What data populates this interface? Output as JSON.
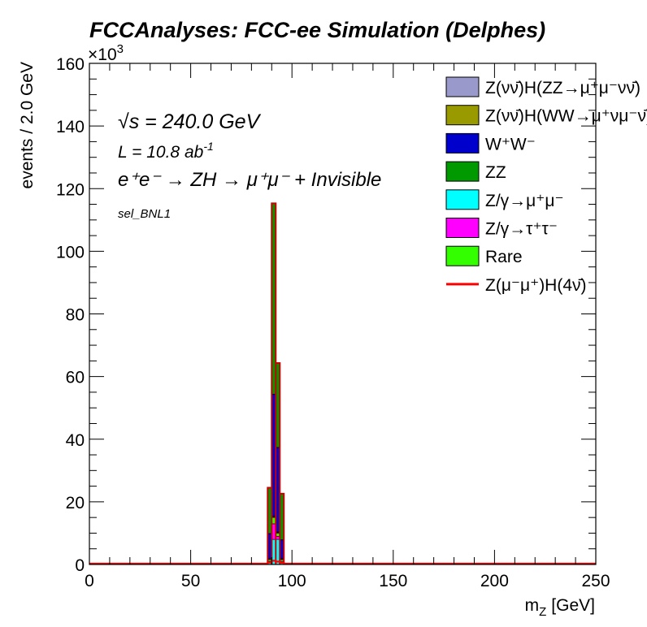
{
  "chart_data": {
    "type": "bar",
    "title": "FCCAnalyses: FCC-ee Simulation (Delphes)",
    "xlabel": "m",
    "xlabel_sub": "Z",
    "xlabel_unit": "[GeV]",
    "ylabel": "events / 2.0 GeV",
    "y_multiplier": "×10",
    "y_multiplier_exp": "3",
    "xlim": [
      0,
      250
    ],
    "ylim": [
      0,
      160
    ],
    "y_units": "thousands of events",
    "xticks": [
      0,
      50,
      100,
      150,
      200,
      250
    ],
    "yticks": [
      0,
      20,
      40,
      60,
      80,
      100,
      120,
      140,
      160
    ],
    "grid": false,
    "legend_position": "top-right",
    "annotations": {
      "sqrt_s": "√s = 240.0 GeV",
      "sqrt_s_sym": "√",
      "sqrt_s_rest": "s = 240.0 GeV",
      "lumi": "L = 10.8 ab",
      "lumi_exp": "-1",
      "process": "e⁺e⁻ → ZH → μ⁺μ⁻ + Invisible",
      "selection": "sel_BNL1"
    },
    "bins": [
      88,
      90,
      92,
      94
    ],
    "bin_width": 2,
    "series": [
      {
        "name": "Z/γ→μ⁺μ⁻",
        "color": "#00ffff",
        "values": [
          0.5,
          8,
          8,
          0.5
        ]
      },
      {
        "name": "Z/γ→τ⁺τ⁻",
        "color": "#ff00ff",
        "values": [
          0.5,
          5,
          1,
          0.5
        ]
      },
      {
        "name": "Rare",
        "color": "#33ff00",
        "values": [
          0.5,
          2,
          1,
          0.5
        ]
      },
      {
        "name": "Z(νν̄)H(ZZ→μ⁺μ⁻νν̄)",
        "color": "#9999cc",
        "values": [
          0.2,
          0.2,
          0.2,
          0.2
        ]
      },
      {
        "name": "Z(νν̄)H(WW→μ⁺νμ⁻ν̄)",
        "color": "#999900",
        "values": [
          0.2,
          0.2,
          0.2,
          0.2
        ]
      },
      {
        "name": "W⁺W⁻",
        "color": "#0000cc",
        "values": [
          8,
          39,
          27,
          6
        ]
      },
      {
        "name": "ZZ",
        "color": "#009900",
        "values": [
          14.6,
          60.9,
          26.9,
          14.7
        ]
      }
    ],
    "signal": {
      "name": "Z(μ⁻μ⁺)H(4ν)",
      "color": "#ff0000",
      "values": [
        0.6,
        1.2,
        0.9,
        0.5
      ]
    },
    "legend": [
      {
        "type": "box",
        "color": "#9999cc",
        "label": "Z(νν̄)H(ZZ→μ⁺μ⁻νν̄)"
      },
      {
        "type": "box",
        "color": "#999900",
        "label": "Z(νν̄)H(WW→μ⁺νμ⁻ν̄)"
      },
      {
        "type": "box",
        "color": "#0000cc",
        "label": "W⁺W⁻"
      },
      {
        "type": "box",
        "color": "#009900",
        "label": "ZZ"
      },
      {
        "type": "box",
        "color": "#00ffff",
        "label": "Z/γ→μ⁺μ⁻"
      },
      {
        "type": "box",
        "color": "#ff00ff",
        "label": "Z/γ→τ⁺τ⁻"
      },
      {
        "type": "box",
        "color": "#33ff00",
        "label": "Rare"
      },
      {
        "type": "line",
        "color": "#ff0000",
        "label": "Z(μ⁻μ⁺)H(4ν̄)"
      }
    ]
  }
}
